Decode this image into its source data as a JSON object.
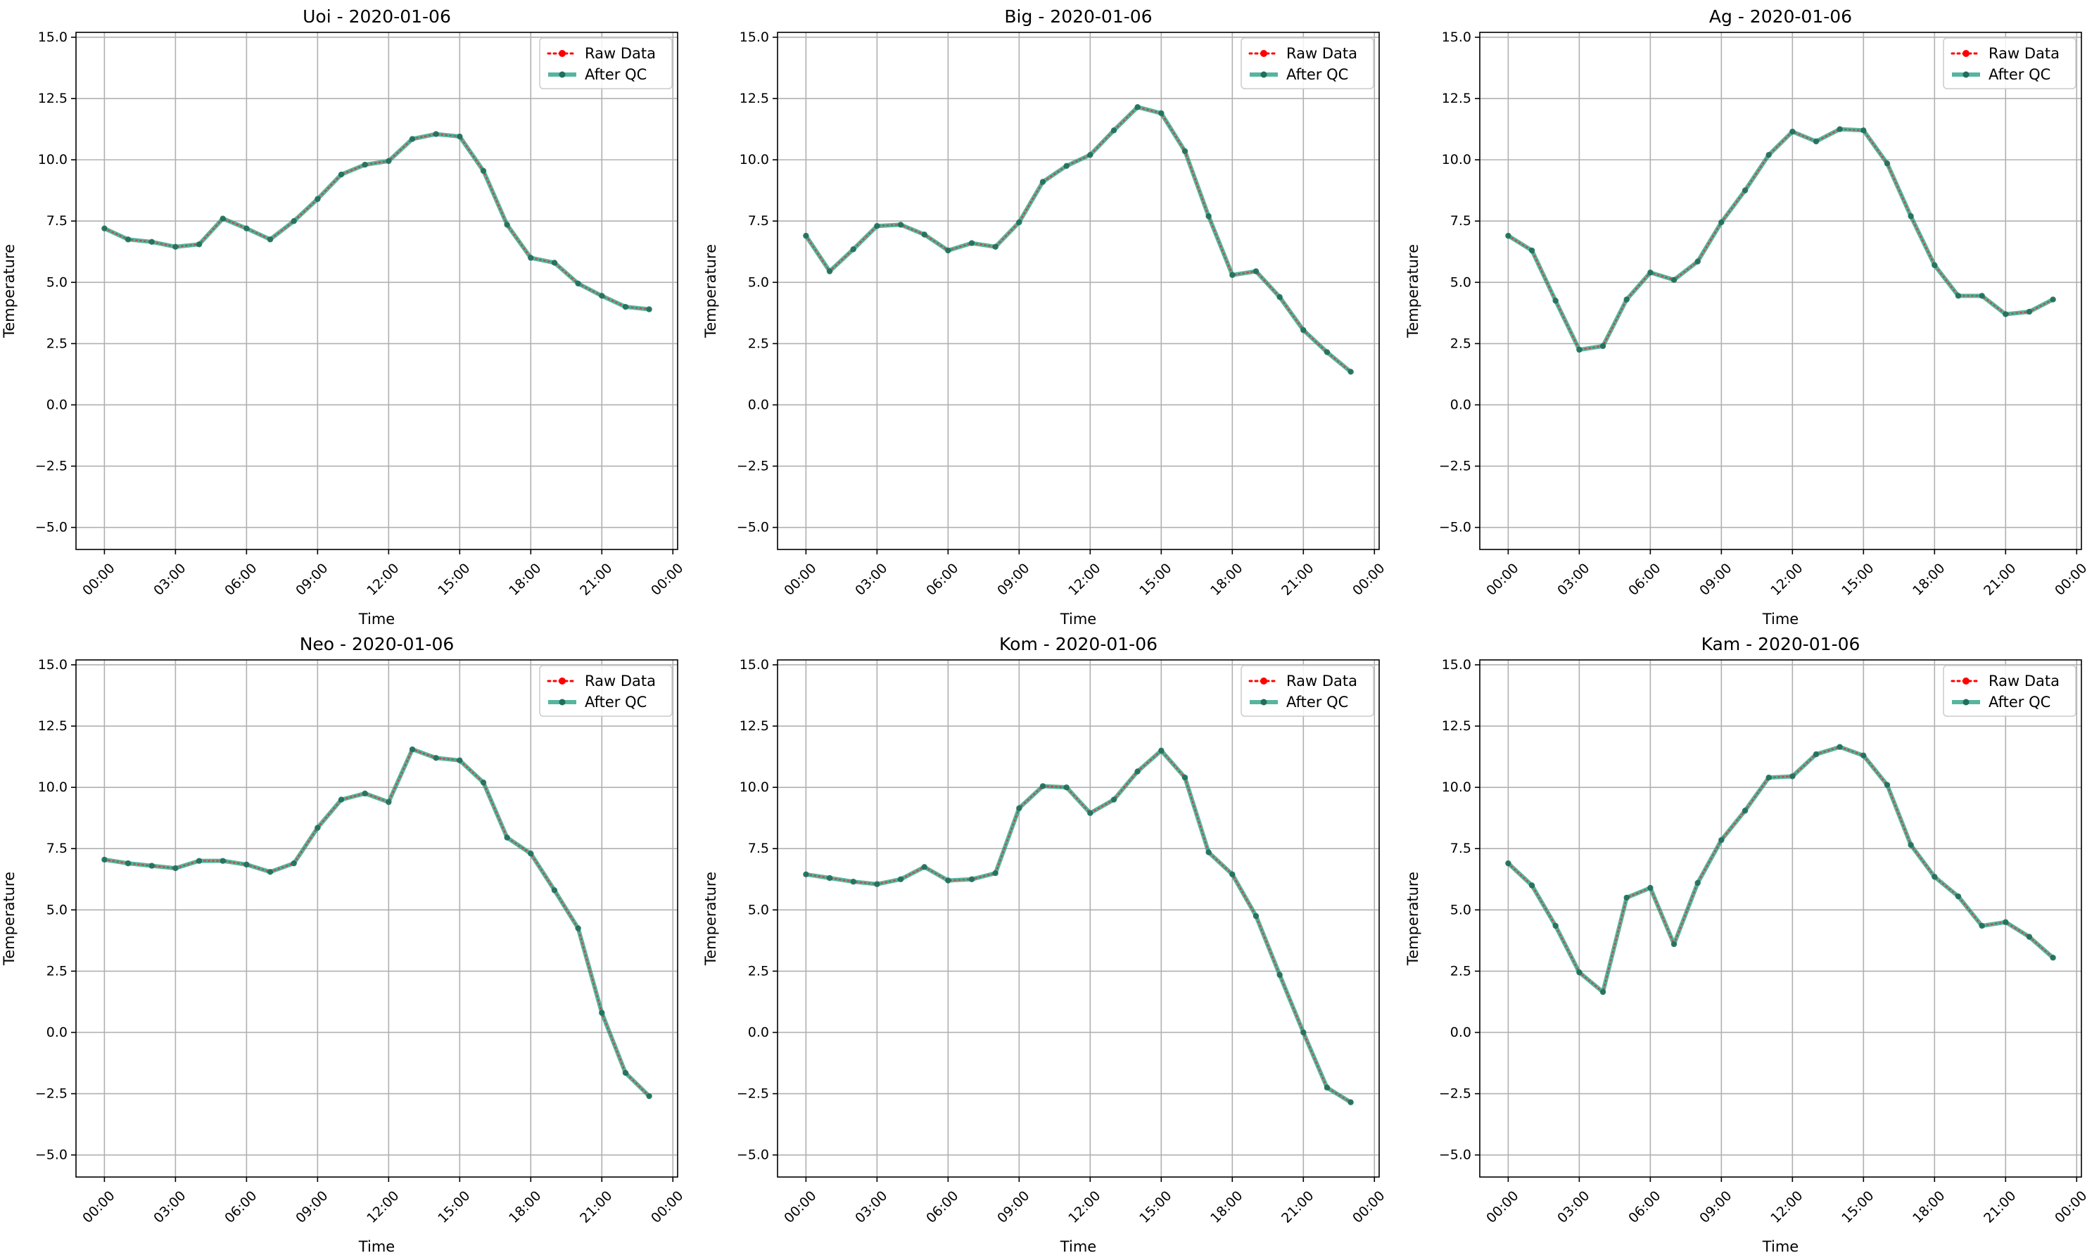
{
  "chart_data": [
    {
      "type": "line",
      "title": "Uoi - 2020-01-06",
      "xlabel": "Time",
      "ylabel": "Temperature",
      "x_hours": [
        0,
        1,
        2,
        3,
        4,
        5,
        6,
        7,
        8,
        9,
        10,
        11,
        12,
        13,
        14,
        15,
        16,
        17,
        18,
        19,
        20,
        21,
        22,
        23
      ],
      "xlim_hours": [
        -1.2,
        24.2
      ],
      "ylim": [
        -5.9,
        15.2
      ],
      "xticks": [
        "00:00",
        "03:00",
        "06:00",
        "09:00",
        "12:00",
        "15:00",
        "18:00",
        "21:00",
        "00:00"
      ],
      "yticks": [
        "−5.0",
        "−2.5",
        "0.0",
        "2.5",
        "5.0",
        "7.5",
        "10.0",
        "12.5",
        "15.0"
      ],
      "grid": true,
      "legend_position": "top-right",
      "series": [
        {
          "name": "Raw Data",
          "color": "#ff0000",
          "style": "dotted",
          "marker": "circle",
          "values": [
            7.2,
            6.75,
            6.65,
            6.45,
            6.55,
            7.6,
            7.2,
            6.75,
            7.5,
            8.4,
            9.4,
            9.8,
            9.95,
            10.85,
            11.05,
            10.95,
            9.55,
            7.35,
            6.0,
            5.8,
            4.95,
            4.45,
            4.0,
            3.9
          ]
        },
        {
          "name": "After QC",
          "color": "#26a083",
          "style": "solid",
          "marker": "circle",
          "values": [
            7.2,
            6.75,
            6.65,
            6.45,
            6.55,
            7.6,
            7.2,
            6.75,
            7.5,
            8.4,
            9.4,
            9.8,
            9.95,
            10.85,
            11.05,
            10.95,
            9.55,
            7.35,
            6.0,
            5.8,
            4.95,
            4.45,
            4.0,
            3.9
          ]
        }
      ]
    },
    {
      "type": "line",
      "title": "Big - 2020-01-06",
      "xlabel": "Time",
      "ylabel": "Temperature",
      "x_hours": [
        0,
        1,
        2,
        3,
        4,
        5,
        6,
        7,
        8,
        9,
        10,
        11,
        12,
        13,
        14,
        15,
        16,
        17,
        18,
        19,
        20,
        21,
        22,
        23
      ],
      "xlim_hours": [
        -1.2,
        24.2
      ],
      "ylim": [
        -5.9,
        15.2
      ],
      "xticks": [
        "00:00",
        "03:00",
        "06:00",
        "09:00",
        "12:00",
        "15:00",
        "18:00",
        "21:00",
        "00:00"
      ],
      "yticks": [
        "−5.0",
        "−2.5",
        "0.0",
        "2.5",
        "5.0",
        "7.5",
        "10.0",
        "12.5",
        "15.0"
      ],
      "grid": true,
      "legend_position": "top-right",
      "series": [
        {
          "name": "Raw Data",
          "color": "#ff0000",
          "style": "dotted",
          "marker": "circle",
          "values": [
            6.9,
            5.45,
            6.35,
            7.3,
            7.35,
            6.95,
            6.3,
            6.6,
            6.45,
            7.45,
            9.1,
            9.75,
            10.2,
            11.2,
            12.15,
            11.9,
            10.35,
            7.7,
            5.3,
            5.45,
            4.4,
            3.05,
            2.15,
            1.35
          ]
        },
        {
          "name": "After QC",
          "color": "#26a083",
          "style": "solid",
          "marker": "circle",
          "values": [
            6.9,
            5.45,
            6.35,
            7.3,
            7.35,
            6.95,
            6.3,
            6.6,
            6.45,
            7.45,
            9.1,
            9.75,
            10.2,
            11.2,
            12.15,
            11.9,
            10.35,
            7.7,
            5.3,
            5.45,
            4.4,
            3.05,
            2.15,
            1.35
          ]
        }
      ]
    },
    {
      "type": "line",
      "title": "Ag - 2020-01-06",
      "xlabel": "Time",
      "ylabel": "Temperature",
      "x_hours": [
        0,
        1,
        2,
        3,
        4,
        5,
        6,
        7,
        8,
        9,
        10,
        11,
        12,
        13,
        14,
        15,
        16,
        17,
        18,
        19,
        20,
        21,
        22,
        23
      ],
      "xlim_hours": [
        -1.2,
        24.2
      ],
      "ylim": [
        -5.9,
        15.2
      ],
      "xticks": [
        "00:00",
        "03:00",
        "06:00",
        "09:00",
        "12:00",
        "15:00",
        "18:00",
        "21:00",
        "00:00"
      ],
      "yticks": [
        "−5.0",
        "−2.5",
        "0.0",
        "2.5",
        "5.0",
        "7.5",
        "10.0",
        "12.5",
        "15.0"
      ],
      "grid": true,
      "legend_position": "top-right",
      "series": [
        {
          "name": "Raw Data",
          "color": "#ff0000",
          "style": "dotted",
          "marker": "circle",
          "values": [
            6.9,
            6.3,
            4.25,
            2.25,
            2.4,
            4.3,
            5.4,
            5.1,
            5.85,
            7.45,
            8.75,
            10.2,
            11.15,
            10.75,
            11.25,
            11.2,
            9.85,
            7.7,
            5.7,
            4.45,
            4.45,
            3.7,
            3.8,
            4.3
          ]
        },
        {
          "name": "After QC",
          "color": "#26a083",
          "style": "solid",
          "marker": "circle",
          "values": [
            6.9,
            6.3,
            4.25,
            2.25,
            2.4,
            4.3,
            5.4,
            5.1,
            5.85,
            7.45,
            8.75,
            10.2,
            11.15,
            10.75,
            11.25,
            11.2,
            9.85,
            7.7,
            5.7,
            4.45,
            4.45,
            3.7,
            3.8,
            4.3
          ]
        }
      ]
    },
    {
      "type": "line",
      "title": "Neo - 2020-01-06",
      "xlabel": "Time",
      "ylabel": "Temperature",
      "x_hours": [
        0,
        1,
        2,
        3,
        4,
        5,
        6,
        7,
        8,
        9,
        10,
        11,
        12,
        13,
        14,
        15,
        16,
        17,
        18,
        19,
        20,
        21,
        22,
        23
      ],
      "xlim_hours": [
        -1.2,
        24.2
      ],
      "ylim": [
        -5.9,
        15.2
      ],
      "xticks": [
        "00:00",
        "03:00",
        "06:00",
        "09:00",
        "12:00",
        "15:00",
        "18:00",
        "21:00",
        "00:00"
      ],
      "yticks": [
        "−5.0",
        "−2.5",
        "0.0",
        "2.5",
        "5.0",
        "7.5",
        "10.0",
        "12.5",
        "15.0"
      ],
      "grid": true,
      "legend_position": "top-right",
      "series": [
        {
          "name": "Raw Data",
          "color": "#ff0000",
          "style": "dotted",
          "marker": "circle",
          "values": [
            7.05,
            6.9,
            6.8,
            6.7,
            7.0,
            7.0,
            6.85,
            6.55,
            6.9,
            8.35,
            9.5,
            9.75,
            9.4,
            11.55,
            11.2,
            11.1,
            10.2,
            7.95,
            7.3,
            5.8,
            4.25,
            0.8,
            -1.65,
            -2.6
          ]
        },
        {
          "name": "After QC",
          "color": "#26a083",
          "style": "solid",
          "marker": "circle",
          "values": [
            7.05,
            6.9,
            6.8,
            6.7,
            7.0,
            7.0,
            6.85,
            6.55,
            6.9,
            8.35,
            9.5,
            9.75,
            9.4,
            11.55,
            11.2,
            11.1,
            10.2,
            7.95,
            7.3,
            5.8,
            4.25,
            0.8,
            -1.65,
            -2.6
          ]
        }
      ]
    },
    {
      "type": "line",
      "title": "Kom - 2020-01-06",
      "xlabel": "Time",
      "ylabel": "Temperature",
      "x_hours": [
        0,
        1,
        2,
        3,
        4,
        5,
        6,
        7,
        8,
        9,
        10,
        11,
        12,
        13,
        14,
        15,
        16,
        17,
        18,
        19,
        20,
        21,
        22,
        23
      ],
      "xlim_hours": [
        -1.2,
        24.2
      ],
      "ylim": [
        -5.9,
        15.2
      ],
      "xticks": [
        "00:00",
        "03:00",
        "06:00",
        "09:00",
        "12:00",
        "15:00",
        "18:00",
        "21:00",
        "00:00"
      ],
      "yticks": [
        "−5.0",
        "−2.5",
        "0.0",
        "2.5",
        "5.0",
        "7.5",
        "10.0",
        "12.5",
        "15.0"
      ],
      "grid": true,
      "legend_position": "top-right",
      "series": [
        {
          "name": "Raw Data",
          "color": "#ff0000",
          "style": "dotted",
          "marker": "circle",
          "values": [
            6.45,
            6.3,
            6.15,
            6.05,
            6.25,
            6.75,
            6.2,
            6.25,
            6.5,
            9.15,
            10.05,
            10.0,
            8.95,
            9.5,
            10.65,
            11.5,
            10.4,
            7.35,
            6.45,
            4.75,
            2.35,
            0.0,
            -2.25,
            -2.85
          ]
        },
        {
          "name": "After QC",
          "color": "#26a083",
          "style": "solid",
          "marker": "circle",
          "values": [
            6.45,
            6.3,
            6.15,
            6.05,
            6.25,
            6.75,
            6.2,
            6.25,
            6.5,
            9.15,
            10.05,
            10.0,
            8.95,
            9.5,
            10.65,
            11.5,
            10.4,
            7.35,
            6.45,
            4.75,
            2.35,
            0.0,
            -2.25,
            -2.85
          ]
        }
      ]
    },
    {
      "type": "line",
      "title": "Kam - 2020-01-06",
      "xlabel": "Time",
      "ylabel": "Temperature",
      "x_hours": [
        0,
        1,
        2,
        3,
        4,
        5,
        6,
        7,
        8,
        9,
        10,
        11,
        12,
        13,
        14,
        15,
        16,
        17,
        18,
        19,
        20,
        21,
        22,
        23
      ],
      "xlim_hours": [
        -1.2,
        24.2
      ],
      "ylim": [
        -5.9,
        15.2
      ],
      "xticks": [
        "00:00",
        "03:00",
        "06:00",
        "09:00",
        "12:00",
        "15:00",
        "18:00",
        "21:00",
        "00:00"
      ],
      "yticks": [
        "−5.0",
        "−2.5",
        "0.0",
        "2.5",
        "5.0",
        "7.5",
        "10.0",
        "12.5",
        "15.0"
      ],
      "grid": true,
      "legend_position": "top-right",
      "series": [
        {
          "name": "Raw Data",
          "color": "#ff0000",
          "style": "dotted",
          "marker": "circle",
          "values": [
            6.9,
            6.0,
            4.35,
            2.45,
            1.65,
            5.5,
            5.9,
            3.6,
            6.1,
            7.85,
            9.05,
            10.4,
            10.45,
            11.35,
            11.65,
            11.3,
            10.1,
            7.65,
            6.35,
            5.55,
            4.35,
            4.5,
            3.9,
            3.05
          ]
        },
        {
          "name": "After QC",
          "color": "#26a083",
          "style": "solid",
          "marker": "circle",
          "values": [
            6.9,
            6.0,
            4.35,
            2.45,
            1.65,
            5.5,
            5.9,
            3.6,
            6.1,
            7.85,
            9.05,
            10.4,
            10.45,
            11.35,
            11.65,
            11.3,
            10.1,
            7.65,
            6.35,
            5.55,
            4.35,
            4.5,
            3.9,
            3.05
          ]
        }
      ]
    }
  ]
}
